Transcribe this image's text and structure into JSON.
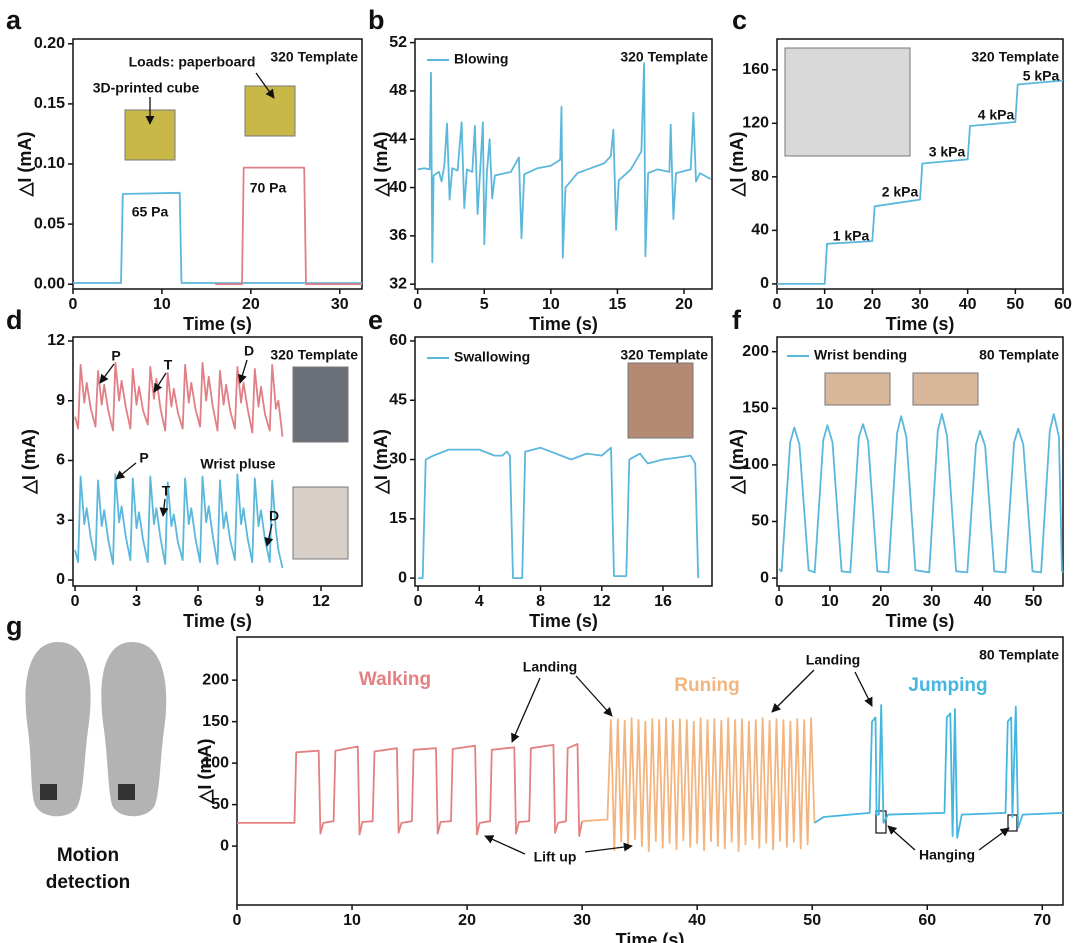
{
  "chart_data": [
    {
      "panel": "a",
      "type": "line",
      "xlabel": "Time (s)",
      "ylabel": "△I (mA)",
      "template": "320 Template",
      "xlim": [
        0,
        32.5
      ],
      "ylim": [
        -0.004,
        0.204
      ],
      "xticks": [
        0,
        10,
        20,
        30
      ],
      "yticks": [
        {
          "value": 0,
          "label": "0.00"
        },
        0.05,
        {
          "value": 0.1,
          "label": "0.10"
        },
        0.15,
        {
          "value": 0.2,
          "label": "0.20"
        }
      ],
      "series": [
        {
          "color": "#5bb8dc",
          "x": [
            0,
            5.4,
            5.6,
            12,
            12.2,
            32.5
          ],
          "values": [
            0.001,
            0.001,
            0.075,
            0.076,
            0.001,
            0.001
          ]
        },
        {
          "color": "#e17f86",
          "x": [
            16,
            19,
            19.2,
            26,
            26.2,
            32.5
          ],
          "values": [
            0,
            0,
            0.097,
            0.097,
            0,
            0
          ]
        }
      ],
      "annotations": [
        "Loads: paperboard",
        "3D-printed cube",
        "65 Pa",
        "70 Pa"
      ]
    },
    {
      "panel": "b",
      "type": "line",
      "xlabel": "Time (s)",
      "ylabel": "△I (mA)",
      "template": "320 Template",
      "xlim": [
        -0.2,
        22.1
      ],
      "ylim": [
        31.6,
        52.3
      ],
      "xticks": [
        0,
        5,
        10,
        15,
        20
      ],
      "yticks": [
        32,
        36,
        40,
        44,
        48,
        52
      ],
      "series": [
        {
          "name": "Blowing",
          "color": "#5bb8dc",
          "x": [
            0,
            0.5,
            0.9,
            1.0,
            1.1,
            1.2,
            1.6,
            1.8,
            2.0,
            2.2,
            2.4,
            2.6,
            3.0,
            3.3,
            3.5,
            3.7,
            4.1,
            4.3,
            4.5,
            4.7,
            4.9,
            5.0,
            5.2,
            5.4,
            5.6,
            5.8,
            7,
            7.6,
            7.8,
            8.0,
            9,
            10,
            10.7,
            10.8,
            10.9,
            11.1,
            12,
            13,
            14,
            14.5,
            14.7,
            14.9,
            15.1,
            16,
            16.8,
            17.0,
            17.1,
            17.3,
            18,
            18.9,
            19.0,
            19.2,
            19.4,
            20.5,
            20.7,
            20.9,
            21.2,
            22
          ],
          "values": [
            41.5,
            41.6,
            41.5,
            49.5,
            33.8,
            41,
            41.3,
            40.5,
            41.8,
            45.3,
            39,
            41.6,
            41.4,
            45.4,
            38.3,
            41.5,
            41.3,
            45.1,
            37.8,
            41.6,
            45.4,
            35.3,
            41.2,
            44,
            39.1,
            41,
            41.3,
            42.5,
            35.8,
            41.1,
            41.6,
            41.8,
            42.3,
            46.7,
            34.2,
            40,
            41.2,
            41.6,
            42,
            42.6,
            44.8,
            36.5,
            40.6,
            41.5,
            43,
            50.3,
            34.3,
            41.2,
            41.5,
            41.3,
            45.2,
            37.4,
            41.2,
            41.5,
            46.2,
            40.5,
            41.2,
            40.7
          ]
        }
      ],
      "annotations": []
    },
    {
      "panel": "c",
      "type": "line",
      "xlabel": "Time (s)",
      "ylabel": "△I (mA)",
      "template": "320 Template",
      "xlim": [
        0,
        60
      ],
      "ylim": [
        -3.8,
        183
      ],
      "xticks": [
        0,
        10,
        20,
        30,
        40,
        50,
        60
      ],
      "yticks": [
        0,
        40,
        80,
        120,
        160
      ],
      "series": [
        {
          "color": "#5bb8dc",
          "x": [
            0,
            10,
            10.5,
            20,
            20.5,
            30,
            30.5,
            40,
            40.5,
            50,
            50.5,
            60
          ],
          "values": [
            0,
            0,
            30,
            32,
            58,
            63,
            90,
            93,
            118,
            121,
            149,
            152
          ]
        }
      ],
      "annotations": [
        "1 kPa",
        "2 kPa",
        "3 kPa",
        "4 kPa",
        "5 kPa"
      ]
    },
    {
      "panel": "d",
      "type": "line",
      "xlabel": "Time (s)",
      "ylabel": "△I (mA)",
      "template": "320 Template",
      "xlim": [
        -0.1,
        14
      ],
      "ylim": [
        -0.3,
        12.2
      ],
      "xticks": [
        0,
        3,
        6,
        9,
        12
      ],
      "yticks": [
        0,
        3,
        6,
        9,
        12
      ],
      "series": [
        {
          "color": "#e17f86",
          "x": [
            0,
            0.15,
            0.27,
            0.45,
            0.57,
            0.77,
            1.0,
            1.12,
            1.3,
            1.42,
            1.62,
            1.85,
            1.97,
            2.15,
            2.27,
            2.47,
            2.7,
            2.82,
            3.0,
            3.12,
            3.32,
            3.55,
            3.67,
            3.85,
            3.97,
            4.17,
            4.4,
            4.52,
            4.7,
            4.82,
            5.02,
            5.25,
            5.37,
            5.55,
            5.67,
            5.87,
            6.1,
            6.22,
            6.4,
            6.52,
            6.72,
            6.95,
            7.07,
            7.25,
            7.37,
            7.57,
            7.8,
            7.92,
            8.1,
            8.22,
            8.42,
            8.65,
            8.77,
            8.95,
            9.07,
            9.27,
            9.5,
            9.62,
            9.8,
            9.92,
            10.12
          ],
          "values": [
            8.2,
            7.6,
            10.8,
            8.9,
            9.9,
            8.6,
            7.7,
            10.5,
            8.8,
            9.8,
            8.5,
            7.5,
            10.9,
            9.0,
            10.0,
            8.7,
            7.6,
            10.6,
            8.8,
            9.7,
            8.5,
            7.8,
            10.7,
            9.1,
            10.1,
            8.6,
            7.5,
            10.4,
            8.7,
            9.6,
            8.4,
            7.6,
            10.8,
            8.9,
            9.9,
            8.6,
            7.7,
            10.9,
            9.0,
            10.2,
            8.7,
            7.5,
            10.5,
            8.8,
            9.8,
            8.5,
            7.6,
            10.7,
            8.9,
            9.9,
            8.6,
            7.4,
            10.6,
            8.7,
            9.7,
            8.3,
            7.5,
            10.8,
            8.6,
            9.0,
            7.2
          ]
        },
        {
          "color": "#5bb8dc",
          "x": [
            0,
            0.15,
            0.27,
            0.45,
            0.57,
            0.77,
            1.0,
            1.12,
            1.3,
            1.42,
            1.62,
            1.85,
            1.97,
            2.15,
            2.27,
            2.47,
            2.7,
            2.82,
            3.0,
            3.12,
            3.32,
            3.55,
            3.67,
            3.85,
            3.97,
            4.17,
            4.4,
            4.52,
            4.7,
            4.82,
            5.02,
            5.25,
            5.37,
            5.55,
            5.67,
            5.87,
            6.1,
            6.22,
            6.4,
            6.52,
            6.72,
            6.95,
            7.07,
            7.25,
            7.37,
            7.57,
            7.8,
            7.92,
            8.1,
            8.22,
            8.42,
            8.65,
            8.77,
            8.95,
            9.07,
            9.27,
            9.5,
            9.62,
            9.8,
            9.92,
            10.12
          ],
          "values": [
            1.5,
            0.9,
            5.2,
            2.8,
            3.6,
            2.1,
            1.0,
            5.0,
            2.7,
            3.5,
            2.0,
            0.8,
            5.3,
            2.9,
            3.7,
            2.2,
            1.0,
            5.1,
            2.6,
            3.4,
            2.0,
            0.9,
            5.2,
            2.8,
            3.6,
            2.1,
            0.8,
            4.9,
            2.7,
            3.3,
            1.9,
            1.0,
            5.1,
            2.8,
            3.6,
            2.1,
            0.9,
            5.2,
            2.9,
            3.7,
            2.2,
            0.8,
            5.0,
            2.6,
            3.4,
            2.0,
            1.0,
            5.3,
            2.8,
            3.6,
            2.1,
            0.9,
            5.1,
            2.7,
            3.5,
            2.0,
            0.9,
            5.0,
            2.5,
            1.5,
            0.6
          ]
        }
      ],
      "annotations": [
        "P",
        "T",
        "D",
        "Wrist pluse",
        "P",
        "T",
        "D"
      ]
    },
    {
      "panel": "e",
      "type": "line",
      "xlabel": "Time (s)",
      "ylabel": "△I (mA)",
      "template": "320 Template",
      "xlim": [
        -0.2,
        19.2
      ],
      "ylim": [
        -2,
        61
      ],
      "xticks": [
        0,
        4,
        8,
        12,
        16
      ],
      "yticks": [
        0,
        15,
        30,
        45,
        60
      ],
      "series": [
        {
          "name": "Swallowing",
          "color": "#5bb8dc",
          "x": [
            0,
            0.3,
            0.5,
            1,
            2,
            4,
            5,
            5.5,
            5.8,
            6.0,
            6.2,
            6.8,
            7.0,
            8,
            10,
            11,
            12,
            12.6,
            12.8,
            13.6,
            13.8,
            14.5,
            15,
            16,
            17,
            17.8,
            18.1,
            18.3
          ],
          "values": [
            0,
            0,
            30,
            31,
            32.5,
            32.5,
            31,
            31,
            32,
            31,
            0,
            0,
            32,
            33,
            30,
            31.5,
            31,
            33,
            0.5,
            0.5,
            30,
            31.5,
            29,
            30,
            30.5,
            31,
            29,
            0
          ]
        }
      ],
      "annotations": []
    },
    {
      "panel": "f",
      "type": "line",
      "xlabel": "Time (s)",
      "ylabel": "△I (mA)",
      "template": "80 Template",
      "xlim": [
        -0.4,
        55.8
      ],
      "ylim": [
        -7,
        213
      ],
      "xticks": [
        0,
        10,
        20,
        30,
        40,
        50
      ],
      "yticks": [
        0,
        50,
        100,
        150,
        200
      ],
      "series": [
        {
          "name": "Wrist bending",
          "color": "#5bb8dc",
          "x": [
            0,
            0.5,
            2.2,
            3,
            4,
            5.8,
            7,
            8.7,
            9.5,
            10.5,
            12.3,
            14,
            15.7,
            16.5,
            17.5,
            19.3,
            21.5,
            23.2,
            24,
            25,
            26.8,
            29.5,
            31.2,
            32,
            33,
            34.8,
            37,
            38.7,
            39.5,
            40.5,
            42.3,
            44.5,
            46.2,
            47,
            48,
            49.8,
            51.5,
            53.2,
            54,
            55,
            55.6,
            55.8
          ],
          "values": [
            8,
            6,
            120,
            133,
            118,
            7,
            5,
            122,
            135,
            120,
            6,
            5,
            125,
            136,
            121,
            6,
            5,
            128,
            143,
            125,
            7,
            5,
            130,
            145,
            126,
            6,
            5,
            118,
            130,
            117,
            6,
            5,
            120,
            132,
            118,
            6,
            5,
            130,
            145,
            125,
            6,
            5
          ]
        }
      ],
      "annotations": []
    },
    {
      "panel": "g",
      "type": "line",
      "xlabel": "Time (s)",
      "ylabel": "△I (mA)",
      "template": "80 Template",
      "xlim": [
        0,
        71.8
      ],
      "ylim": [
        -71,
        252
      ],
      "xticks": [
        0,
        10,
        20,
        30,
        40,
        50,
        60,
        70
      ],
      "yticks": [
        0,
        50,
        100,
        150,
        200
      ],
      "series": [
        {
          "name": "Walking",
          "color": "#e58080",
          "x": [
            0,
            5.0,
            5.15,
            7.1,
            7.25,
            7.5,
            8.4,
            8.55,
            10.5,
            10.65,
            10.9,
            11.8,
            11.95,
            13.9,
            14.05,
            14.3,
            15.2,
            15.35,
            17.3,
            17.45,
            17.7,
            18.6,
            18.75,
            20.7,
            20.85,
            21.1,
            22.0,
            22.15,
            24.1,
            24.25,
            24.5,
            25.4,
            25.55,
            27.5,
            27.65,
            27.9,
            28.6,
            28.75,
            29.6,
            29.75,
            30.0
          ],
          "values": [
            28,
            28,
            113,
            115,
            15,
            28,
            30,
            115,
            120,
            14,
            29,
            30,
            114,
            118,
            16,
            28,
            30,
            116,
            118,
            15,
            29,
            30,
            117,
            121,
            14,
            28,
            30,
            116,
            119,
            15,
            29,
            30,
            118,
            122,
            16,
            28,
            30,
            118,
            123,
            12,
            30
          ]
        },
        {
          "name": "Runing",
          "color": "#f3b57f",
          "x": [
            30.0,
            32.2,
            32.5,
            32.8,
            33.1,
            33.4,
            33.7,
            34.0,
            34.3,
            34.6,
            34.9,
            35.2,
            35.5,
            35.8,
            36.1,
            36.4,
            36.7,
            37.0,
            37.3,
            37.6,
            37.9,
            38.2,
            38.5,
            38.8,
            39.1,
            39.4,
            39.7,
            40.0,
            40.3,
            40.6,
            40.9,
            41.2,
            41.5,
            41.8,
            42.1,
            42.4,
            42.7,
            43.0,
            43.3,
            43.6,
            43.9,
            44.2,
            44.5,
            44.8,
            45.1,
            45.4,
            45.7,
            46.0,
            46.3,
            46.6,
            46.9,
            47.2,
            47.5,
            47.8,
            48.1,
            48.4,
            48.7,
            49.0,
            49.3,
            49.6,
            49.9,
            50.2
          ],
          "values": [
            30,
            32,
            152,
            -5,
            153,
            5,
            151,
            -3,
            154,
            8,
            152,
            0,
            150,
            -6,
            153,
            6,
            152,
            -2,
            154,
            4,
            151,
            -4,
            153,
            7,
            152,
            -1,
            150,
            3,
            154,
            -5,
            152,
            6,
            153,
            0,
            151,
            -3,
            154,
            5,
            152,
            -6,
            153,
            2,
            150,
            8,
            152,
            -2,
            154,
            4,
            151,
            -4,
            153,
            6,
            152,
            -1,
            150,
            5,
            153,
            -3,
            152,
            2,
            154,
            28
          ]
        },
        {
          "name": "Jumping",
          "color": "#45b6e0",
          "x": [
            50.2,
            51,
            55.0,
            55.2,
            55.5,
            55.6,
            55.8,
            56.0,
            56.2,
            56.6,
            61.5,
            61.7,
            62.0,
            62.2,
            62.4,
            62.6,
            63,
            66.8,
            67.0,
            67.3,
            67.4,
            67.7,
            67.9,
            68.3,
            71.8
          ],
          "values": [
            28,
            35,
            40,
            150,
            155,
            38,
            38,
            170,
            28,
            38,
            40,
            155,
            160,
            12,
            165,
            10,
            38,
            40,
            150,
            155,
            35,
            168,
            22,
            38,
            40
          ]
        }
      ],
      "annotations": [
        "Landing",
        "Landing",
        "Lift up",
        "Hanging",
        "Motion detection"
      ]
    }
  ]
}
